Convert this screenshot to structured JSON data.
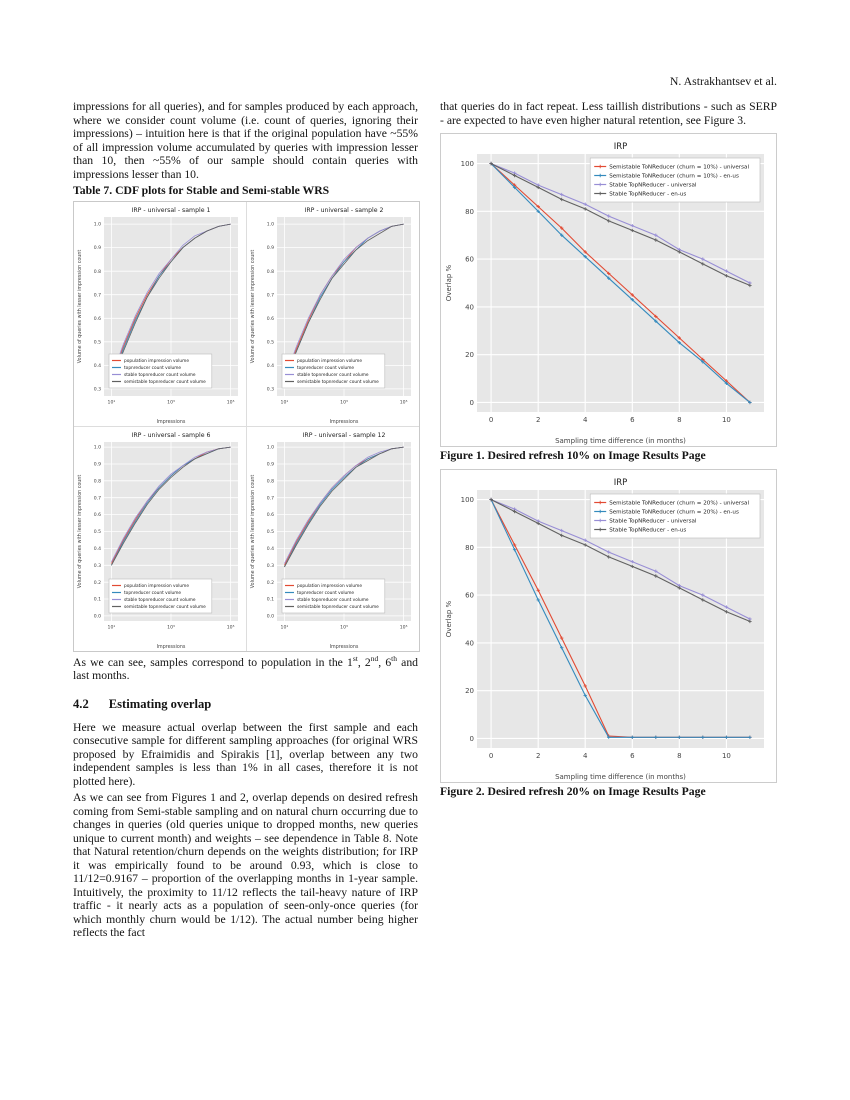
{
  "header": {
    "author_line": "N. Astrakhantsev et al."
  },
  "left": {
    "para1": "impressions for all queries), and for samples produced by each approach, where we consider count volume (i.e. count of queries, ignoring their impressions) – intuition here is that if the original population have ~55% of all impression volume accumulated by queries with impression lesser than 10, then ~55% of our sample should contain queries with impressions lesser than 10.",
    "table_caption": "Table 7. CDF plots for Stable and Semi-stable WRS",
    "after_table_parts": [
      "As we can see, samples correspond to population in the 1",
      "st",
      ", 2",
      "nd",
      ", 6",
      "th",
      " and last months."
    ],
    "section": {
      "number": "4.2",
      "title": "Estimating overlap"
    },
    "para2": "Here we measure actual overlap between the first sample and each consecutive sample for different sampling approaches (for original WRS proposed by Efraimidis and Spirakis [1], overlap between any two independent samples is less than 1% in all cases, therefore it is not plotted here).",
    "para3": "As we can see from Figures 1 and 2, overlap depends on desired refresh coming from Semi-stable sampling and on natural churn occurring due to changes in queries (old queries unique to dropped months, new queries unique to current month) and weights – see dependence in Table 8. Note that Natural retention/churn depends on the weights distribution; for IRP it was empirically found to be around 0.93, which is close to 11/12=0.9167 – proportion of the overlapping months in 1-year sample. Intuitively, the proximity to 11/12 reflects the tail-heavy nature of IRP traffic - it nearly acts as a population of seen-only-once queries (for which monthly churn would be 1/12).  The actual number being higher reflects the fact"
  },
  "right": {
    "para1": "that queries do in fact repeat.  Less taillish distributions - such as SERP - are expected to have even higher natural retention, see Figure 3.",
    "figure1_caption": "Figure 1. Desired refresh 10% on Image Results Page",
    "figure2_caption": "Figure 2. Desired refresh 20% on Image Results Page"
  },
  "palette": {
    "red": "#E24A33",
    "blue": "#348ABD",
    "purple": "#988ED5",
    "gray": "#616161",
    "plot_bg": "#e7e7e7",
    "grid": "#ffffff"
  },
  "chart_data": [
    {
      "id": "cdf-sample-1",
      "type": "line",
      "title": "IRP - universal - sample 1",
      "xlabel": "Impressions",
      "ylabel": "Volume of queries with lesser impression count",
      "xscale": "log",
      "xlim": [
        0.75,
        5.25
      ],
      "ylim": [
        0.27,
        1.03
      ],
      "xticks": [
        [
          1,
          "10¹"
        ],
        [
          3,
          "10³"
        ],
        [
          5,
          "10⁵"
        ]
      ],
      "yticks": [
        [
          0.3,
          "0.3"
        ],
        [
          0.4,
          "0.4"
        ],
        [
          0.5,
          "0.5"
        ],
        [
          0.6,
          "0.6"
        ],
        [
          0.7,
          "0.7"
        ],
        [
          0.8,
          "0.8"
        ],
        [
          0.9,
          "0.9"
        ],
        [
          1.0,
          "1.0"
        ]
      ],
      "legend_pos": "lower-left",
      "grid": true,
      "x": [
        1,
        1.4,
        1.8,
        2.2,
        2.6,
        3,
        3.4,
        3.8,
        4.2,
        4.6,
        5
      ],
      "series": [
        {
          "name": "population impression volume",
          "color": "#E24A33",
          "y": [
            0.34,
            0.48,
            0.6,
            0.7,
            0.78,
            0.85,
            0.9,
            0.94,
            0.97,
            0.99,
            1.0
          ]
        },
        {
          "name": "topnreducer count volume",
          "color": "#348ABD",
          "y": [
            0.33,
            0.47,
            0.59,
            0.69,
            0.78,
            0.84,
            0.9,
            0.94,
            0.97,
            0.99,
            1.0
          ]
        },
        {
          "name": "stable topnreducer count volume",
          "color": "#988ED5",
          "y": [
            0.35,
            0.49,
            0.61,
            0.71,
            0.79,
            0.85,
            0.91,
            0.95,
            0.97,
            0.99,
            1.0
          ]
        },
        {
          "name": "semistable topnreducer count volume",
          "color": "#616161",
          "y": [
            0.33,
            0.46,
            0.58,
            0.69,
            0.77,
            0.84,
            0.9,
            0.94,
            0.97,
            0.99,
            1.0
          ]
        }
      ]
    },
    {
      "id": "cdf-sample-2",
      "type": "line",
      "title": "IRP - universal - sample 2",
      "xlabel": "Impressions",
      "ylabel": "Volume of queries with lesser impression count",
      "xscale": "log",
      "xlim": [
        0.75,
        5.25
      ],
      "ylim": [
        0.27,
        1.03
      ],
      "xticks": [
        [
          1,
          "10¹"
        ],
        [
          3,
          "10³"
        ],
        [
          5,
          "10⁵"
        ]
      ],
      "yticks": [
        [
          0.3,
          "0.3"
        ],
        [
          0.4,
          "0.4"
        ],
        [
          0.5,
          "0.5"
        ],
        [
          0.6,
          "0.6"
        ],
        [
          0.7,
          "0.7"
        ],
        [
          0.8,
          "0.8"
        ],
        [
          0.9,
          "0.9"
        ],
        [
          1.0,
          "1.0"
        ]
      ],
      "legend_pos": "lower-left",
      "grid": true,
      "x": [
        1,
        1.4,
        1.8,
        2.2,
        2.6,
        3,
        3.4,
        3.8,
        4.2,
        4.6,
        5
      ],
      "series": [
        {
          "name": "population impression volume",
          "color": "#E24A33",
          "y": [
            0.34,
            0.47,
            0.59,
            0.7,
            0.78,
            0.84,
            0.9,
            0.94,
            0.97,
            0.99,
            1.0
          ]
        },
        {
          "name": "topnreducer count volume",
          "color": "#348ABD",
          "y": [
            0.33,
            0.46,
            0.58,
            0.69,
            0.77,
            0.84,
            0.89,
            0.94,
            0.97,
            0.99,
            1.0
          ]
        },
        {
          "name": "stable topnreducer count volume",
          "color": "#988ED5",
          "y": [
            0.34,
            0.48,
            0.6,
            0.7,
            0.78,
            0.85,
            0.9,
            0.94,
            0.97,
            0.99,
            1.0
          ]
        },
        {
          "name": "semistable topnreducer count volume",
          "color": "#616161",
          "y": [
            0.32,
            0.46,
            0.58,
            0.68,
            0.77,
            0.83,
            0.89,
            0.93,
            0.96,
            0.99,
            1.0
          ]
        }
      ]
    },
    {
      "id": "cdf-sample-6",
      "type": "line",
      "title": "IRP - universal - sample 6",
      "xlabel": "Impressions",
      "ylabel": "Volume of queries with lesser impression count",
      "xscale": "log",
      "xlim": [
        0.75,
        5.25
      ],
      "ylim": [
        -0.03,
        1.03
      ],
      "xticks": [
        [
          1,
          "10¹"
        ],
        [
          3,
          "10³"
        ],
        [
          5,
          "10⁵"
        ]
      ],
      "yticks": [
        [
          0.0,
          "0.0"
        ],
        [
          0.1,
          "0.1"
        ],
        [
          0.2,
          "0.2"
        ],
        [
          0.3,
          "0.3"
        ],
        [
          0.4,
          "0.4"
        ],
        [
          0.5,
          "0.5"
        ],
        [
          0.6,
          "0.6"
        ],
        [
          0.7,
          "0.7"
        ],
        [
          0.8,
          "0.8"
        ],
        [
          0.9,
          "0.9"
        ],
        [
          1.0,
          "1.0"
        ]
      ],
      "legend_pos": "lower-left",
      "grid": true,
      "x": [
        1,
        1.4,
        1.8,
        2.2,
        2.6,
        3,
        3.4,
        3.8,
        4.2,
        4.6,
        5
      ],
      "series": [
        {
          "name": "population impression volume",
          "color": "#E24A33",
          "y": [
            0.31,
            0.45,
            0.57,
            0.68,
            0.76,
            0.83,
            0.89,
            0.93,
            0.97,
            0.99,
            1.0
          ]
        },
        {
          "name": "topnreducer count volume",
          "color": "#348ABD",
          "y": [
            0.3,
            0.44,
            0.56,
            0.67,
            0.76,
            0.83,
            0.89,
            0.93,
            0.96,
            0.99,
            1.0
          ]
        },
        {
          "name": "stable topnreducer count volume",
          "color": "#988ED5",
          "y": [
            0.32,
            0.46,
            0.58,
            0.68,
            0.77,
            0.84,
            0.89,
            0.94,
            0.97,
            0.99,
            1.0
          ]
        },
        {
          "name": "semistable topnreducer count volume",
          "color": "#616161",
          "y": [
            0.3,
            0.43,
            0.55,
            0.66,
            0.75,
            0.82,
            0.88,
            0.93,
            0.96,
            0.99,
            1.0
          ]
        }
      ]
    },
    {
      "id": "cdf-sample-12",
      "type": "line",
      "title": "IRP - universal - sample 12",
      "xlabel": "Impressions",
      "ylabel": "Volume of queries with lesser impression count",
      "xscale": "log",
      "xlim": [
        0.75,
        5.25
      ],
      "ylim": [
        -0.03,
        1.03
      ],
      "xticks": [
        [
          1,
          "10¹"
        ],
        [
          3,
          "10³"
        ],
        [
          5,
          "10⁵"
        ]
      ],
      "yticks": [
        [
          0.0,
          "0.0"
        ],
        [
          0.1,
          "0.1"
        ],
        [
          0.2,
          "0.2"
        ],
        [
          0.3,
          "0.3"
        ],
        [
          0.4,
          "0.4"
        ],
        [
          0.5,
          "0.5"
        ],
        [
          0.6,
          "0.6"
        ],
        [
          0.7,
          "0.7"
        ],
        [
          0.8,
          "0.8"
        ],
        [
          0.9,
          "0.9"
        ],
        [
          1.0,
          "1.0"
        ]
      ],
      "legend_pos": "lower-left",
      "grid": true,
      "x": [
        1,
        1.4,
        1.8,
        2.2,
        2.6,
        3,
        3.4,
        3.8,
        4.2,
        4.6,
        5
      ],
      "series": [
        {
          "name": "population impression volume",
          "color": "#E24A33",
          "y": [
            0.3,
            0.44,
            0.56,
            0.67,
            0.76,
            0.83,
            0.89,
            0.93,
            0.96,
            0.99,
            1.0
          ]
        },
        {
          "name": "topnreducer count volume",
          "color": "#348ABD",
          "y": [
            0.29,
            0.43,
            0.55,
            0.66,
            0.75,
            0.82,
            0.88,
            0.93,
            0.96,
            0.99,
            1.0
          ]
        },
        {
          "name": "stable topnreducer count volume",
          "color": "#988ED5",
          "y": [
            0.31,
            0.45,
            0.57,
            0.67,
            0.76,
            0.83,
            0.89,
            0.94,
            0.97,
            0.99,
            1.0
          ]
        },
        {
          "name": "semistable topnreducer count volume",
          "color": "#616161",
          "y": [
            0.29,
            0.42,
            0.54,
            0.65,
            0.74,
            0.81,
            0.88,
            0.92,
            0.96,
            0.99,
            1.0
          ]
        }
      ]
    },
    {
      "id": "overlap-refresh-10",
      "type": "line",
      "title": "IRP",
      "xlabel": "Sampling time difference (in months)",
      "ylabel": "Overlap %",
      "xscale": "linear",
      "xlim": [
        -0.6,
        11.6
      ],
      "ylim": [
        -4,
        104
      ],
      "xticks": [
        [
          0,
          "0"
        ],
        [
          2,
          "2"
        ],
        [
          4,
          "4"
        ],
        [
          6,
          "6"
        ],
        [
          8,
          "8"
        ],
        [
          10,
          "10"
        ]
      ],
      "yticks": [
        [
          0,
          "0"
        ],
        [
          20,
          "20"
        ],
        [
          40,
          "40"
        ],
        [
          60,
          "60"
        ],
        [
          80,
          "80"
        ],
        [
          100,
          "100"
        ]
      ],
      "legend_pos": "upper-right",
      "grid": true,
      "x": [
        0,
        1,
        2,
        3,
        4,
        5,
        6,
        7,
        8,
        9,
        10,
        11
      ],
      "series": [
        {
          "name": "Semistable ToNReducer (churn = 10%) - universal",
          "color": "#E24A33",
          "y": [
            100,
            91,
            82,
            73,
            63,
            54,
            45,
            36,
            27,
            18,
            9,
            0
          ]
        },
        {
          "name": "Semistable ToNReducer (churn = 10%) - en-us",
          "color": "#348ABD",
          "y": [
            100,
            90,
            80,
            70,
            61,
            52,
            43,
            34,
            25,
            17,
            8,
            0
          ]
        },
        {
          "name": "Stable TopNReducer - universal",
          "color": "#988ED5",
          "y": [
            100,
            96,
            91,
            87,
            83,
            78,
            74,
            70,
            64,
            60,
            55,
            50
          ]
        },
        {
          "name": "Stable TopNReducer - en-us",
          "color": "#616161",
          "y": [
            100,
            95,
            90,
            85,
            81,
            76,
            72,
            68,
            63,
            58,
            53,
            49
          ]
        }
      ]
    },
    {
      "id": "overlap-refresh-20",
      "type": "line",
      "title": "IRP",
      "xlabel": "Sampling time difference (in months)",
      "ylabel": "Overlap %",
      "xscale": "linear",
      "xlim": [
        -0.6,
        11.6
      ],
      "ylim": [
        -4,
        104
      ],
      "xticks": [
        [
          0,
          "0"
        ],
        [
          2,
          "2"
        ],
        [
          4,
          "4"
        ],
        [
          6,
          "6"
        ],
        [
          8,
          "8"
        ],
        [
          10,
          "10"
        ]
      ],
      "yticks": [
        [
          0,
          "0"
        ],
        [
          20,
          "20"
        ],
        [
          40,
          "40"
        ],
        [
          60,
          "60"
        ],
        [
          80,
          "80"
        ],
        [
          100,
          "100"
        ]
      ],
      "legend_pos": "upper-right",
      "grid": true,
      "x": [
        0,
        1,
        2,
        3,
        4,
        5,
        6,
        7,
        8,
        9,
        10,
        11
      ],
      "series": [
        {
          "name": "Semistable ToNReducer (churn = 20%) - universal",
          "color": "#E24A33",
          "y": [
            100,
            81,
            62,
            42,
            22,
            1,
            0.5,
            0.5,
            0.5,
            0.5,
            0.5,
            0.5
          ]
        },
        {
          "name": "Semistable ToNReducer (churn = 20%) - en-us",
          "color": "#348ABD",
          "y": [
            100,
            79,
            58,
            38,
            18,
            0.5,
            0.5,
            0.5,
            0.5,
            0.5,
            0.5,
            0.5
          ]
        },
        {
          "name": "Stable TopNReducer - universal",
          "color": "#988ED5",
          "y": [
            100,
            96,
            91,
            87,
            83,
            78,
            74,
            70,
            64,
            60,
            55,
            50
          ]
        },
        {
          "name": "Stable TopNReducer - en-us",
          "color": "#616161",
          "y": [
            100,
            95,
            90,
            85,
            81,
            76,
            72,
            68,
            63,
            58,
            53,
            49
          ]
        }
      ]
    }
  ]
}
